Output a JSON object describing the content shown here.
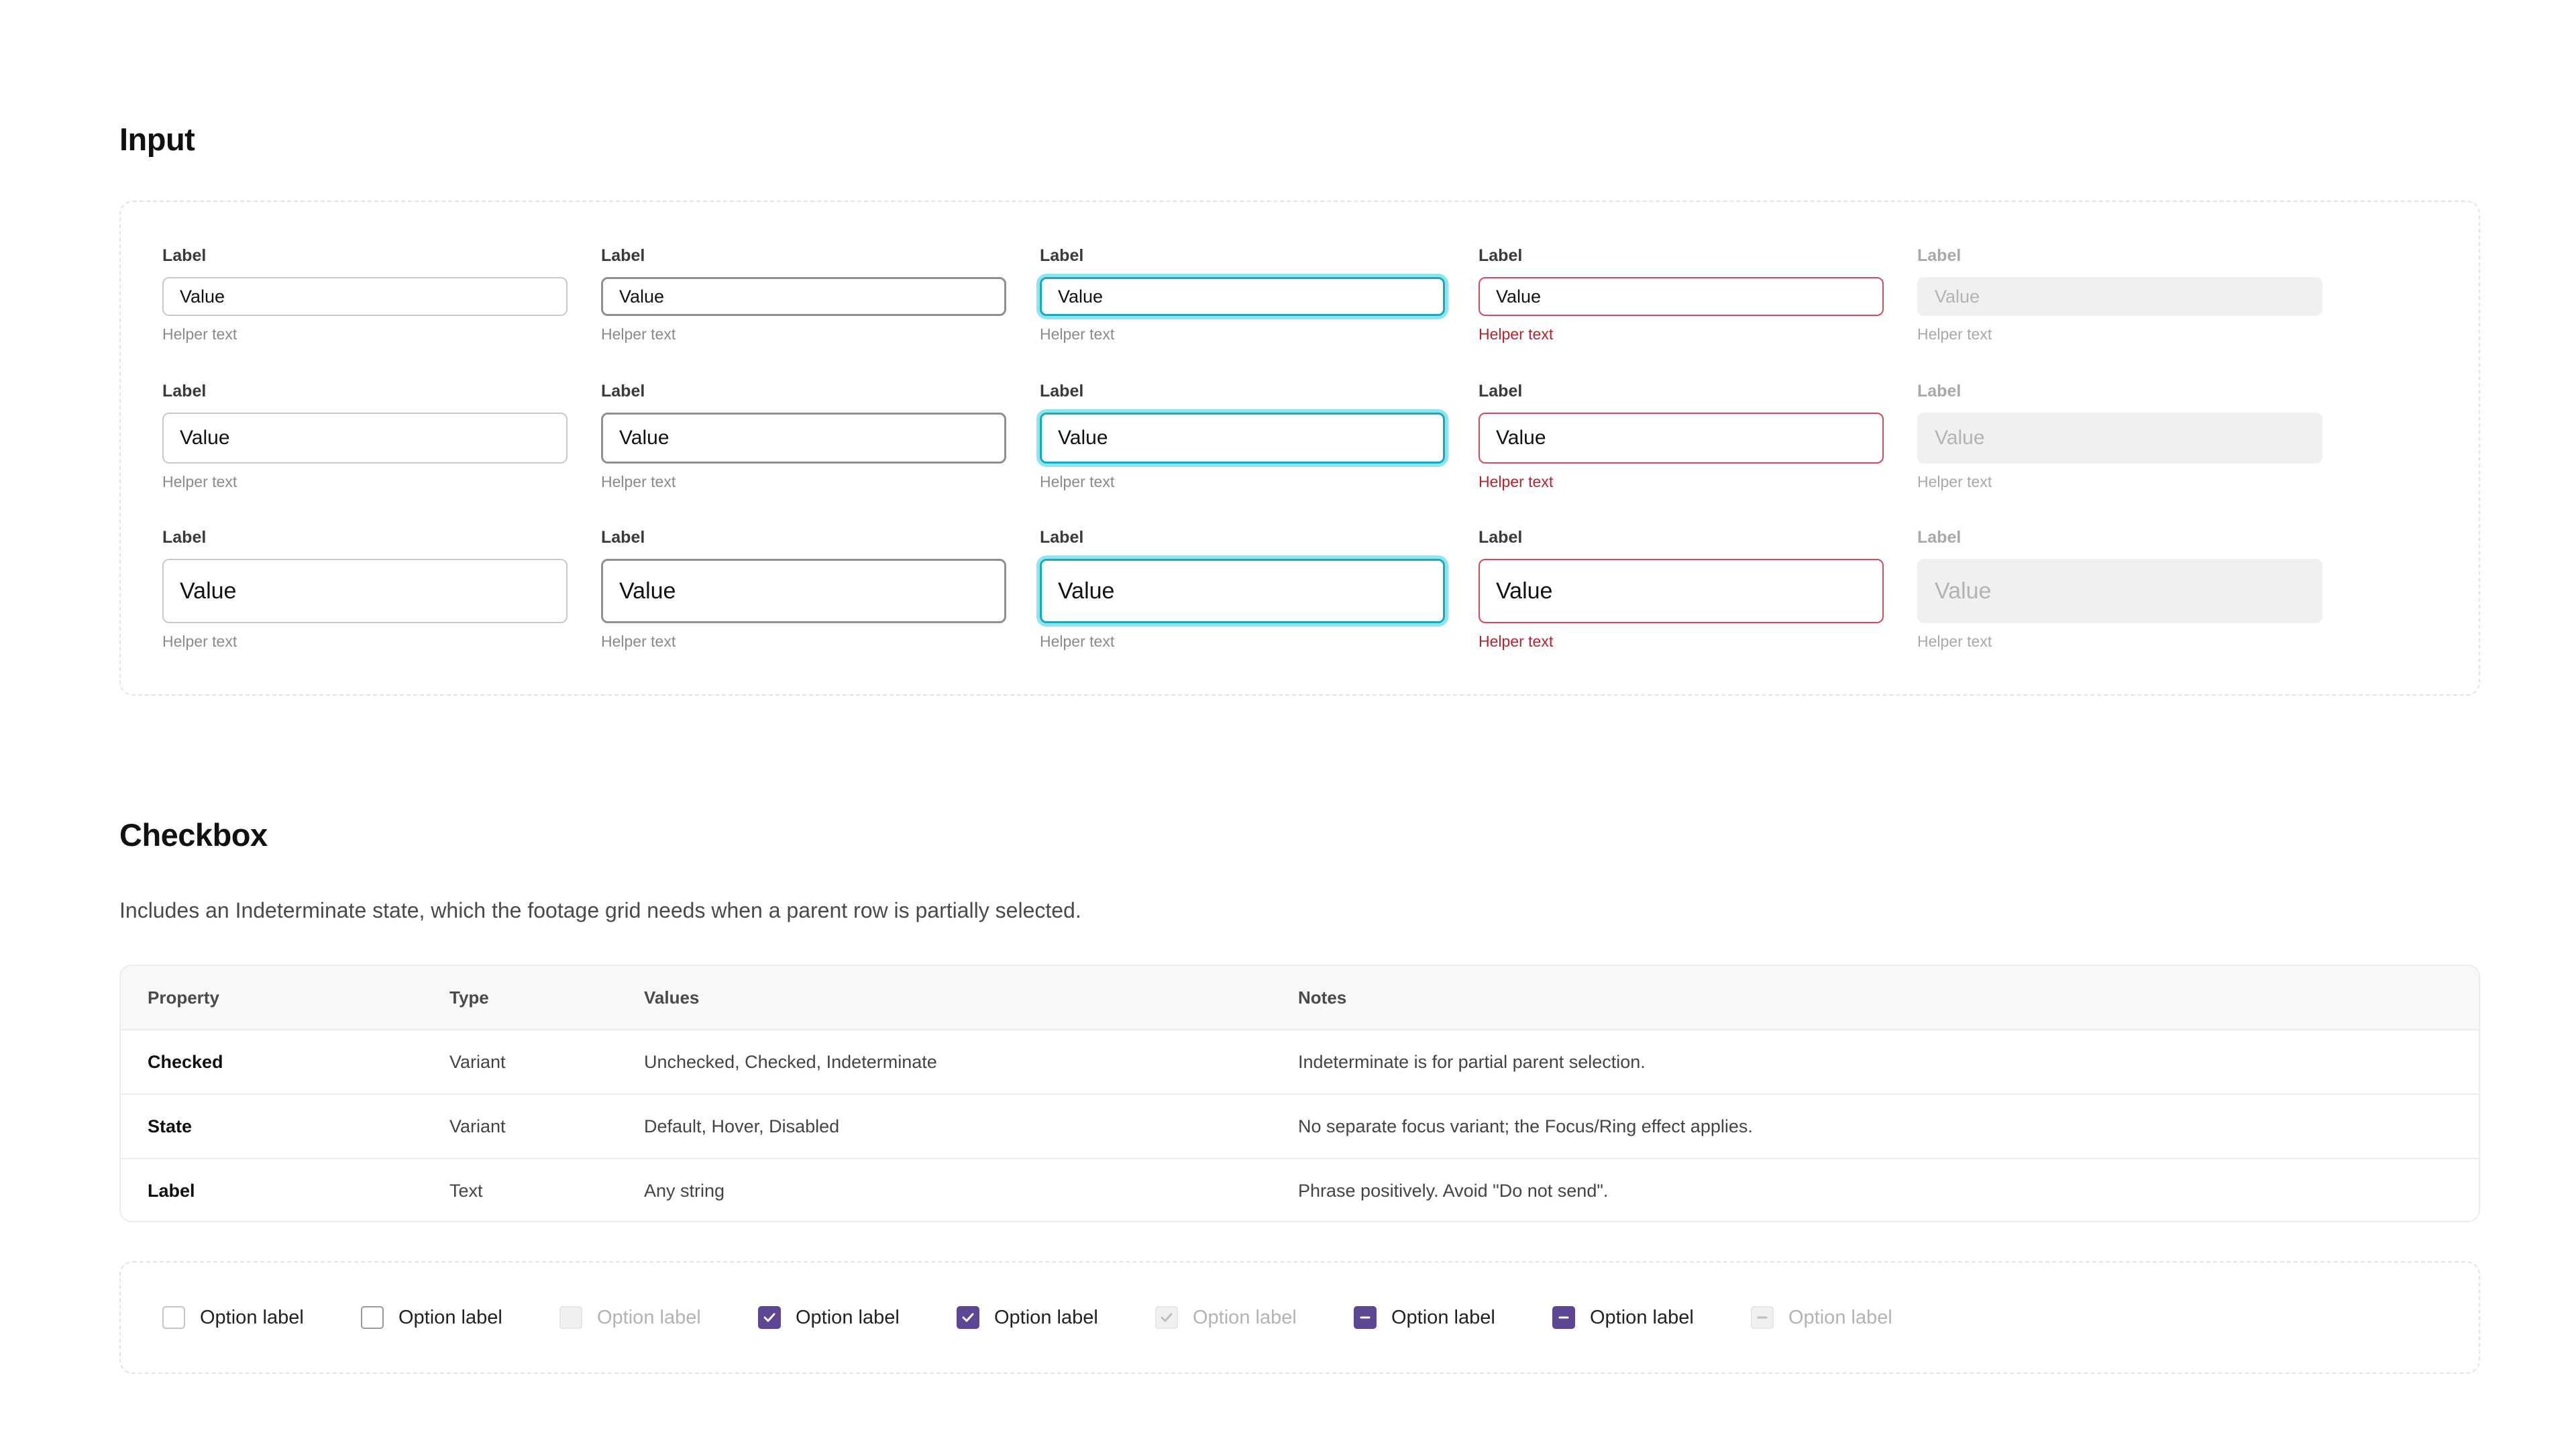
{
  "input_section": {
    "title": "Input",
    "fields": [
      {
        "label": "Label",
        "value": "Value",
        "helper": "Helper text"
      }
    ]
  },
  "checkbox_section": {
    "title": "Checkbox",
    "description": "Includes an Indeterminate state, which the footage grid needs when a parent row is partially selected.",
    "table": {
      "headers": [
        "Property",
        "Type",
        "Values",
        "Notes"
      ],
      "rows": [
        [
          "Checked",
          "Variant",
          "Unchecked, Checked, Indeterminate",
          "Indeterminate is for partial parent selection."
        ],
        [
          "State",
          "Variant",
          "Default, Hover, Disabled",
          "No separate focus variant; the Focus/Ring effect applies."
        ],
        [
          "Label",
          "Text",
          "Any string",
          "Phrase positively. Avoid \"Do not send\"."
        ]
      ]
    },
    "option_label": "Option label"
  },
  "colors": {
    "focus": "#1aa8bd",
    "error": "#d24b57",
    "accent": "#5d4694"
  },
  "icons": [
    "check-icon",
    "minus-icon"
  ]
}
